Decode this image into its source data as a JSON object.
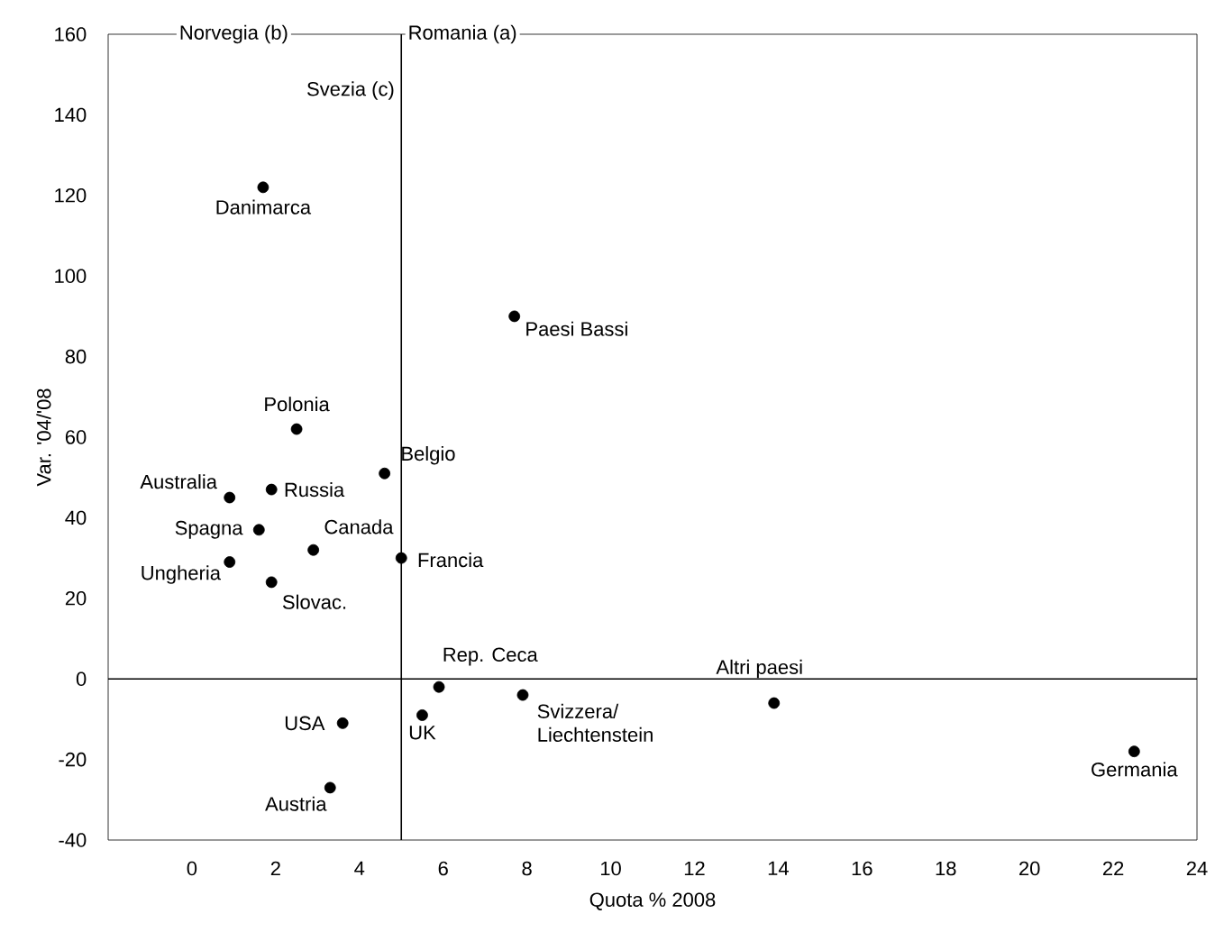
{
  "chart_data": {
    "type": "scatter",
    "xlabel": "Quota % 2008",
    "ylabel": "Var. '04/'08",
    "xlim": [
      -2,
      24
    ],
    "ylim": [
      -40,
      160
    ],
    "xticks": [
      0,
      2,
      4,
      6,
      8,
      10,
      12,
      14,
      16,
      18,
      20,
      22,
      24
    ],
    "yticks": [
      -40,
      -20,
      0,
      20,
      40,
      60,
      80,
      100,
      120,
      140,
      160
    ],
    "marker": "circle",
    "grid": false,
    "annotations": [
      "Norvegia (b)",
      "Romania (a)",
      "Svezia (c)"
    ],
    "ref_lines": [
      {
        "axis": "y",
        "value": 0,
        "color": "#000000"
      },
      {
        "axis": "x",
        "value": 5,
        "color": "#000000"
      }
    ],
    "series": [
      {
        "name": "Danimarca",
        "color": "#000000",
        "x": [
          1.7
        ],
        "values": [
          122
        ]
      },
      {
        "name": "Paesi Bassi",
        "color": "#000000",
        "x": [
          7.7
        ],
        "values": [
          90
        ]
      },
      {
        "name": "Polonia",
        "color": "#000000",
        "x": [
          2.5
        ],
        "values": [
          62
        ]
      },
      {
        "name": "Australia",
        "color": "#000000",
        "x": [
          0.9
        ],
        "values": [
          45
        ]
      },
      {
        "name": "Russia",
        "color": "#000000",
        "x": [
          1.9
        ],
        "values": [
          47
        ]
      },
      {
        "name": "Belgio",
        "color": "#000000",
        "x": [
          4.6
        ],
        "values": [
          51
        ]
      },
      {
        "name": "Spagna",
        "color": "#000000",
        "x": [
          1.6
        ],
        "values": [
          37
        ]
      },
      {
        "name": "Canada",
        "color": "#000000",
        "x": [
          2.9
        ],
        "values": [
          32
        ]
      },
      {
        "name": "Ungheria",
        "color": "#000000",
        "x": [
          0.9
        ],
        "values": [
          29
        ]
      },
      {
        "name": "Francia",
        "color": "#000000",
        "x": [
          5.0
        ],
        "values": [
          30
        ]
      },
      {
        "name": "Slovac.",
        "color": "#000000",
        "x": [
          1.9
        ],
        "values": [
          24
        ]
      },
      {
        "name": "Rep. Ceca",
        "color": "#000000",
        "x": [
          5.9
        ],
        "values": [
          -2
        ]
      },
      {
        "name": "Altri paesi",
        "color": "#000000",
        "x": [
          13.9
        ],
        "values": [
          -6
        ]
      },
      {
        "name": "USA",
        "color": "#000000",
        "x": [
          3.6
        ],
        "values": [
          -11
        ]
      },
      {
        "name": "UK",
        "color": "#000000",
        "x": [
          5.5
        ],
        "values": [
          -9
        ]
      },
      {
        "name": "Svizzera/ Liechtenstein",
        "color": "#000000",
        "x": [
          7.9
        ],
        "values": [
          -4
        ]
      },
      {
        "name": "Austria",
        "color": "#000000",
        "x": [
          3.3
        ],
        "values": [
          -27
        ]
      },
      {
        "name": "Germania",
        "color": "#000000",
        "x": [
          22.5
        ],
        "values": [
          -18
        ]
      }
    ]
  }
}
